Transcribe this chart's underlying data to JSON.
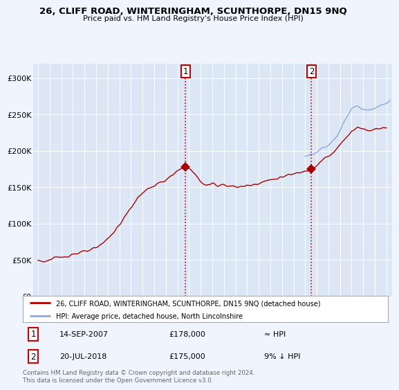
{
  "title": "26, CLIFF ROAD, WINTERINGHAM, SCUNTHORPE, DN15 9NQ",
  "subtitle": "Price paid vs. HM Land Registry's House Price Index (HPI)",
  "background_color": "#f0f4ff",
  "plot_bg_color": "#dce6f5",
  "highlight_color": "#ccd9f0",
  "ylabel": "",
  "ylim": [
    0,
    320000
  ],
  "yticks": [
    0,
    50000,
    100000,
    150000,
    200000,
    250000,
    300000
  ],
  "ytick_labels": [
    "£0",
    "£50K",
    "£100K",
    "£150K",
    "£200K",
    "£250K",
    "£300K"
  ],
  "legend_entry1": "26, CLIFF ROAD, WINTERINGHAM, SCUNTHORPE, DN15 9NQ (detached house)",
  "legend_entry2": "HPI: Average price, detached house, North Lincolnshire",
  "sale1_date": "14-SEP-2007",
  "sale1_price": "£178,000",
  "sale1_relation": "≈ HPI",
  "sale2_date": "20-JUL-2018",
  "sale2_price": "£175,000",
  "sale2_relation": "9% ↓ HPI",
  "footer": "Contains HM Land Registry data © Crown copyright and database right 2024.\nThis data is licensed under the Open Government Licence v3.0.",
  "sale1_color": "#aa0000",
  "vline_color": "#cc0000",
  "hpi_color": "#88aadd",
  "sale1_x": 2007.71,
  "sale2_x": 2018.54,
  "sale1_y": 178000,
  "sale2_y": 175000,
  "xlim_left": 1994.6,
  "xlim_right": 2025.5
}
